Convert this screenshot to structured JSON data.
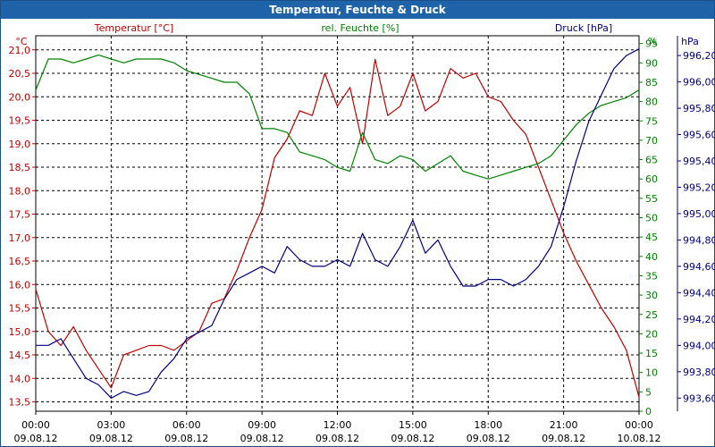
{
  "window": {
    "title": "Temperatur, Feuchte & Druck"
  },
  "chart_data": {
    "type": "line",
    "title": "Temperatur, Feuchte & Druck",
    "x": [
      "00:00",
      "00:30",
      "01:00",
      "01:30",
      "02:00",
      "02:30",
      "03:00",
      "03:30",
      "04:00",
      "04:30",
      "05:00",
      "05:30",
      "06:00",
      "06:30",
      "07:00",
      "07:30",
      "08:00",
      "08:30",
      "09:00",
      "09:30",
      "10:00",
      "10:30",
      "11:00",
      "11:30",
      "12:00",
      "12:30",
      "13:00",
      "13:30",
      "14:00",
      "14:30",
      "15:00",
      "15:30",
      "16:00",
      "16:30",
      "17:00",
      "17:30",
      "18:00",
      "18:30",
      "19:00",
      "19:30",
      "20:00",
      "20:30",
      "21:00",
      "21:30",
      "22:00",
      "22:30",
      "23:00",
      "23:30",
      "00:00"
    ],
    "x_tick_labels": [
      {
        "time": "00:00",
        "date": "09.08.12"
      },
      {
        "time": "03:00",
        "date": "09.08.12"
      },
      {
        "time": "06:00",
        "date": "09.08.12"
      },
      {
        "time": "09:00",
        "date": "09.08.12"
      },
      {
        "time": "12:00",
        "date": "09.08.12"
      },
      {
        "time": "15:00",
        "date": "09.08.12"
      },
      {
        "time": "18:00",
        "date": "09.08.12"
      },
      {
        "time": "21:00",
        "date": "09.08.12"
      },
      {
        "time": "00:00",
        "date": "10.08.12"
      }
    ],
    "axes": {
      "left": {
        "label": "Temperatur [°C]",
        "unit": "°C",
        "range": [
          13.3,
          21.3
        ],
        "ticks": [
          "13,5",
          "14,0",
          "14,5",
          "15,0",
          "15,5",
          "16,0",
          "16,5",
          "17,0",
          "17,5",
          "18,0",
          "18,5",
          "19,0",
          "19,5",
          "20,0",
          "20,5",
          "21,0"
        ],
        "color": "#c00000"
      },
      "right1": {
        "label": "rel. Feuchte [%]",
        "unit": "%",
        "range": [
          0,
          97
        ],
        "ticks": [
          "0",
          "5",
          "10",
          "15",
          "20",
          "25",
          "30",
          "35",
          "40",
          "45",
          "50",
          "55",
          "60",
          "65",
          "70",
          "75",
          "80",
          "85",
          "90",
          "95"
        ],
        "color": "#008000"
      },
      "right2": {
        "label": "Druck [hPa]",
        "unit": "hPa",
        "range": [
          993.5,
          996.35
        ],
        "ticks": [
          "993,60",
          "993,80",
          "994,00",
          "994,20",
          "994,40",
          "994,60",
          "994,80",
          "995,00",
          "995,20",
          "995,40",
          "995,60",
          "995,80",
          "996,00",
          "996,20"
        ],
        "color": "#000080"
      }
    },
    "grid": true,
    "series": [
      {
        "name": "Temperatur [°C]",
        "axis": "left",
        "color": "#c00000",
        "values": [
          15.9,
          15.0,
          14.7,
          15.1,
          14.6,
          14.2,
          13.8,
          14.5,
          14.6,
          14.7,
          14.7,
          14.6,
          14.8,
          15.0,
          15.6,
          15.7,
          16.3,
          17.0,
          17.6,
          18.7,
          19.1,
          19.7,
          19.6,
          20.5,
          19.8,
          20.2,
          19.0,
          20.8,
          19.6,
          19.8,
          20.5,
          19.7,
          19.9,
          20.6,
          20.4,
          20.5,
          20.0,
          19.9,
          19.5,
          19.2,
          18.5,
          17.8,
          17.1,
          16.5,
          16.0,
          15.5,
          15.1,
          14.6,
          13.6
        ]
      },
      {
        "name": "rel. Feuchte [%]",
        "axis": "right1",
        "color": "#008000",
        "values": [
          83,
          91,
          91,
          90,
          91,
          92,
          91,
          90,
          91,
          91,
          91,
          90,
          88,
          87,
          86,
          85,
          85,
          82,
          73,
          73,
          72,
          67,
          66,
          65,
          63,
          62,
          72,
          65,
          64,
          66,
          65,
          62,
          64,
          66,
          62,
          61,
          60,
          61,
          62,
          63,
          64,
          66,
          70,
          74,
          77,
          79,
          80,
          81,
          83
        ]
      },
      {
        "name": "Druck [hPa]",
        "axis": "right2",
        "color": "#000080",
        "values": [
          994.0,
          994.0,
          994.05,
          993.9,
          993.75,
          993.7,
          993.6,
          993.65,
          993.62,
          993.65,
          993.8,
          993.9,
          994.05,
          994.1,
          994.15,
          994.35,
          994.5,
          994.55,
          994.6,
          994.55,
          994.75,
          994.65,
          994.6,
          994.6,
          994.65,
          994.6,
          994.85,
          994.65,
          994.6,
          994.75,
          994.95,
          994.7,
          994.8,
          994.6,
          994.45,
          994.45,
          994.5,
          994.5,
          994.45,
          994.5,
          994.6,
          994.75,
          995.05,
          995.4,
          995.7,
          995.9,
          996.1,
          996.2,
          996.25
        ]
      }
    ]
  }
}
